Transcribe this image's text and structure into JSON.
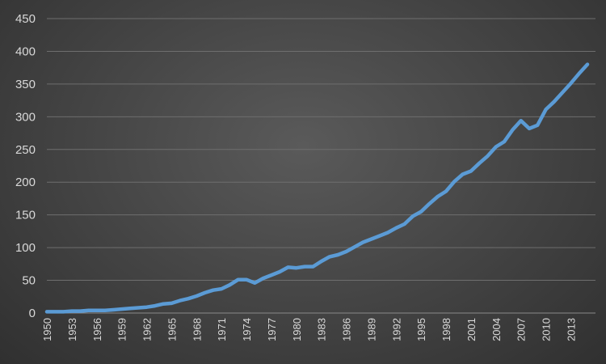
{
  "chart_data": {
    "type": "line",
    "title": "",
    "xlabel": "",
    "ylabel": "",
    "ylim": [
      0,
      450
    ],
    "yticks": [
      "0",
      "50",
      "100",
      "150",
      "200",
      "250",
      "300",
      "350",
      "400",
      "450"
    ],
    "xticks": [
      "1950",
      "1953",
      "1956",
      "1959",
      "1962",
      "1965",
      "1968",
      "1971",
      "1974",
      "1977",
      "1980",
      "1983",
      "1986",
      "1989",
      "1992",
      "1995",
      "1998",
      "2001",
      "2004",
      "2007",
      "2010",
      "2013"
    ],
    "grid": true,
    "legend": "none",
    "line_color": "#5b9bd5",
    "x": [
      1950,
      1951,
      1952,
      1953,
      1954,
      1955,
      1956,
      1957,
      1958,
      1959,
      1960,
      1961,
      1962,
      1963,
      1964,
      1965,
      1966,
      1967,
      1968,
      1969,
      1970,
      1971,
      1972,
      1973,
      1974,
      1975,
      1976,
      1977,
      1978,
      1979,
      1980,
      1981,
      1982,
      1983,
      1984,
      1985,
      1986,
      1987,
      1988,
      1989,
      1990,
      1991,
      1992,
      1993,
      1994,
      1995,
      1996,
      1997,
      1998,
      1999,
      2000,
      2001,
      2002,
      2003,
      2004,
      2005,
      2006,
      2007,
      2008,
      2009,
      2010,
      2011,
      2012,
      2013,
      2014,
      2015
    ],
    "values": [
      2,
      2,
      2,
      3,
      3,
      4,
      4,
      4,
      5,
      6,
      7,
      8,
      9,
      11,
      14,
      15,
      19,
      22,
      26,
      31,
      35,
      37,
      43,
      51,
      51,
      46,
      53,
      58,
      63,
      70,
      69,
      71,
      71,
      79,
      86,
      89,
      94,
      101,
      108,
      113,
      118,
      123,
      130,
      136,
      148,
      155,
      167,
      178,
      186,
      201,
      212,
      217,
      229,
      240,
      254,
      262,
      280,
      294,
      282,
      287,
      311,
      323,
      337,
      351,
      366,
      380
    ]
  }
}
